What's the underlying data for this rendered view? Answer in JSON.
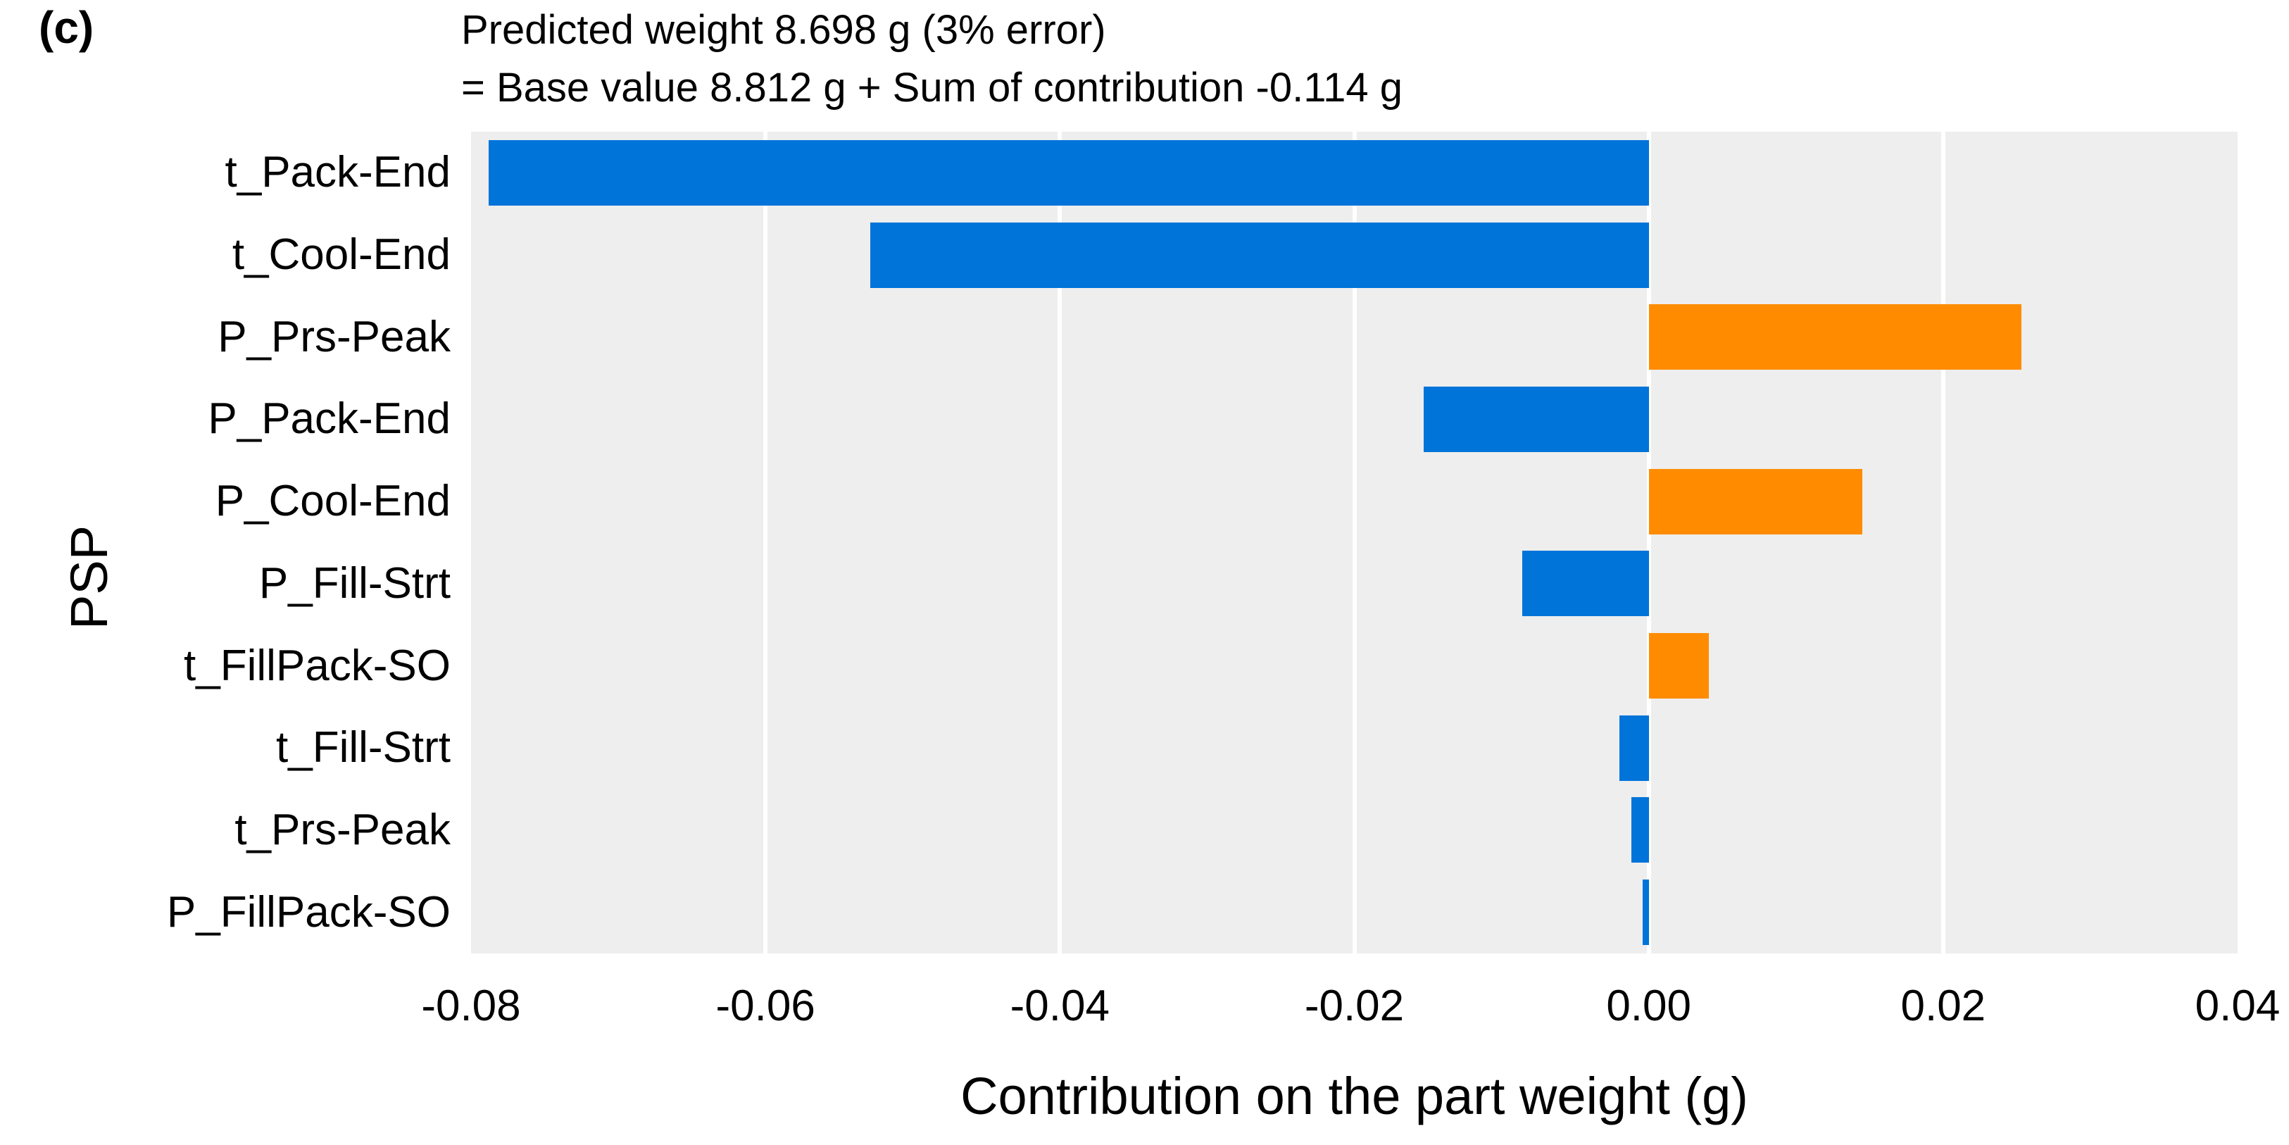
{
  "panel_label": "(c)",
  "title": {
    "line1": "Predicted weight 8.698 g (3% error)",
    "line2": "= Base value 8.812 g + Sum of contribution -0.114 g"
  },
  "chart_data": {
    "type": "bar",
    "orientation": "horizontal",
    "title": "Predicted weight 8.698 g (3% error) = Base value 8.812 g + Sum of contribution -0.114 g",
    "xlabel": "Contribution on the part weight (g)",
    "ylabel": "PSP",
    "categories": [
      "t_Pack-End",
      "t_Cool-End",
      "P_Prs-Peak",
      "P_Pack-End",
      "P_Cool-End",
      "P_Fill-Strt",
      "t_FillPack-SO",
      "t_Fill-Strt",
      "t_Prs-Peak",
      "P_FillPack-SO"
    ],
    "values": [
      -0.0788,
      -0.0529,
      0.0253,
      -0.0153,
      0.0145,
      -0.0086,
      0.0041,
      -0.002,
      -0.0012,
      -0.0004
    ],
    "xlim": [
      -0.08,
      0.04
    ],
    "xticks": [
      -0.08,
      -0.06,
      -0.04,
      -0.02,
      0.0,
      0.02,
      0.04
    ],
    "xtick_labels": [
      "-0.08",
      "-0.06",
      "-0.04",
      "-0.02",
      "0.00",
      "0.02",
      "0.04"
    ],
    "grid": true,
    "legend": false,
    "colors": {
      "negative": "#0074D9",
      "positive": "#FF8C00"
    },
    "plot_bg": "#EEEEEE",
    "gridline_color": "#FFFFFF"
  }
}
